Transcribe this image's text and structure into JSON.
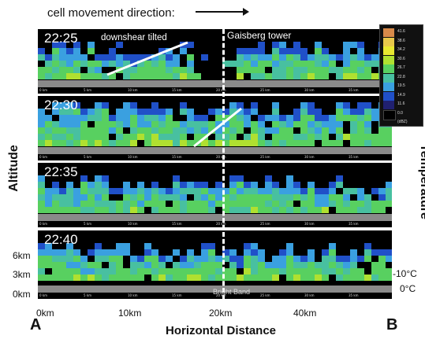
{
  "header": {
    "text": "cell movement direction:"
  },
  "panels": [
    {
      "time": "22:25",
      "annotation": "downshear tilted"
    },
    {
      "time": "22:30"
    },
    {
      "time": "22:35"
    },
    {
      "time": "22:40"
    }
  ],
  "tower_label": "Gaisberg tower",
  "bright_band_label": "Bright Band",
  "axis": {
    "y_title": "Altitude",
    "y_right_title": "Temperature",
    "altitudes": [
      "6km",
      "3km",
      "0km"
    ],
    "temperatures": [
      "-10°C",
      "0°C"
    ],
    "x_ticks": [
      "0km",
      "10km",
      "20km",
      "40km"
    ],
    "x_title": "Horizontal Distance",
    "panel_ticks": [
      "0 km",
      "5 km",
      "10 km",
      "15 km",
      "20 km",
      "25 km",
      "30 km",
      "35 km"
    ],
    "endpoint_left": "A",
    "endpoint_right": "B"
  },
  "colorbar": {
    "labels": [
      "41.6",
      "38.6",
      "34.2",
      "30.6",
      "26.7",
      "22.8",
      "19.5",
      "14.9",
      "11.6",
      "0.0"
    ],
    "unit": "(dBZ)",
    "colors": [
      "#d88a4a",
      "#e8c84a",
      "#e8e830",
      "#b0e030",
      "#58d060",
      "#48c0a0",
      "#3aa0e0",
      "#2050c8",
      "#202070",
      "#000000"
    ]
  }
}
